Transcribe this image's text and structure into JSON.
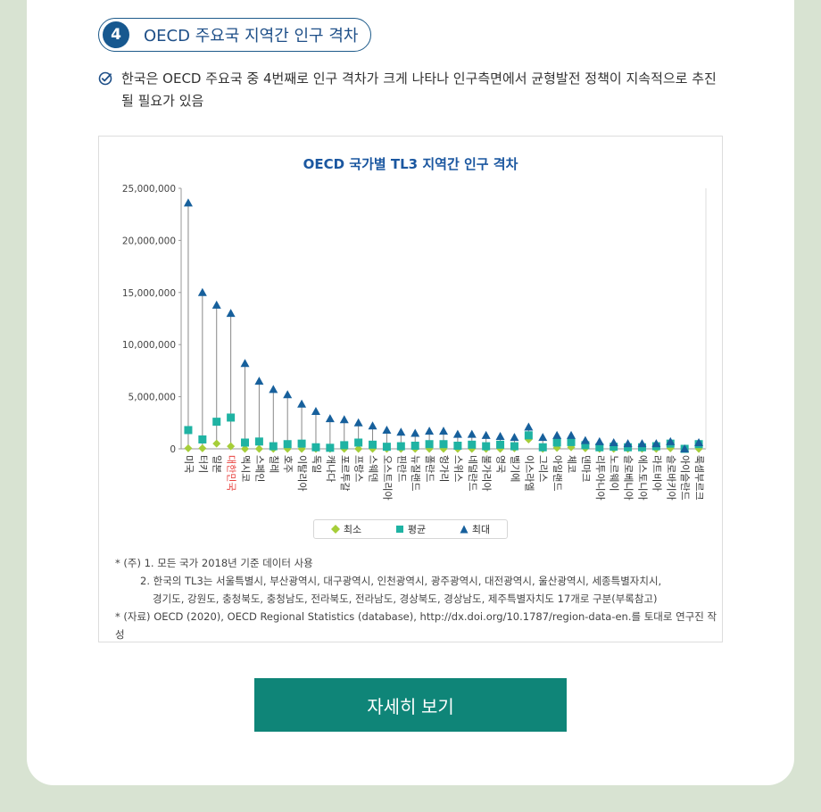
{
  "section": {
    "number": "4",
    "title": "OECD 주요국 지역간 인구 격차"
  },
  "bullet": {
    "icon": "check-circle-icon",
    "text": "한국은 OECD 주요국 중 4번째로 인구 격차가 크게 나타나 인구측면에서 균형발전 정책이 지속적으로 추진될 필요가 있음"
  },
  "colors": {
    "min": "#a6ce39",
    "avg": "#1fb3a3",
    "max": "#17609c",
    "highlight": "#e8423f",
    "button": "#0f8578"
  },
  "chart_data": {
    "type": "scatter",
    "title": "OECD 국가별 TL3 지역간 인구 격차",
    "ylim": [
      0,
      25000000
    ],
    "yticks": [
      "25,000,000",
      "20,000,000",
      "15,000,000",
      "10,000,000",
      "5,000,000",
      "0"
    ],
    "ytick_values": [
      25000000,
      20000000,
      15000000,
      10000000,
      5000000,
      0
    ],
    "highlight_category": "대한민국",
    "categories": [
      "미국",
      "터키",
      "일본",
      "대한민국",
      "멕시코",
      "스페인",
      "칠레",
      "호주",
      "이탈리아",
      "독일",
      "캐나다",
      "포르투갈",
      "프랑스",
      "스웨덴",
      "오스트리아",
      "핀란드",
      "뉴질랜드",
      "폴란드",
      "헝가리",
      "스위스",
      "네덜란드",
      "불가리아",
      "영국",
      "벨기에",
      "이스라엘",
      "그리스",
      "아일랜드",
      "체코",
      "덴마크",
      "리투아니아",
      "노르웨이",
      "슬로베니아",
      "에스토니아",
      "라트비아",
      "슬로바키아",
      "아이슬란드",
      "룩셈부르크"
    ],
    "series": [
      {
        "name": "최소",
        "values": [
          50000,
          50000,
          500000,
          250000,
          0,
          0,
          0,
          0,
          0,
          0,
          0,
          0,
          0,
          0,
          0,
          0,
          0,
          0,
          0,
          0,
          0,
          0,
          0,
          50000,
          900000,
          0,
          100000,
          150000,
          50000,
          0,
          0,
          0,
          0,
          0,
          50000,
          0,
          0
        ]
      },
      {
        "name": "평균",
        "values": [
          1800000,
          900000,
          2600000,
          3000000,
          600000,
          700000,
          250000,
          450000,
          500000,
          150000,
          100000,
          350000,
          600000,
          400000,
          200000,
          250000,
          300000,
          450000,
          450000,
          300000,
          400000,
          250000,
          400000,
          250000,
          1300000,
          150000,
          600000,
          650000,
          350000,
          150000,
          200000,
          150000,
          150000,
          250000,
          500000,
          0,
          450000
        ]
      },
      {
        "name": "최대",
        "values": [
          23600000,
          15000000,
          13800000,
          13000000,
          8200000,
          6500000,
          5700000,
          5200000,
          4300000,
          3600000,
          2900000,
          2800000,
          2500000,
          2200000,
          1800000,
          1600000,
          1500000,
          1700000,
          1700000,
          1400000,
          1400000,
          1300000,
          1200000,
          1100000,
          2100000,
          1100000,
          1300000,
          1300000,
          800000,
          700000,
          600000,
          500000,
          500000,
          500000,
          700000,
          0,
          600000
        ]
      }
    ]
  },
  "legend": {
    "min": "최소",
    "avg": "평균",
    "max": "최대"
  },
  "notes": {
    "line1": "* (주) 1. 모든 국가 2018년 기준 데이터 사용",
    "line2": "2. 한국의 TL3는 서울특별시, 부산광역시, 대구광역시, 인천광역시, 광주광역시, 대전광역시, 울산광역시, 세종특별자치시,",
    "line3": "경기도, 강원도, 충청북도, 충청남도, 전라북도, 전라남도, 경상북도, 경상남도, 제주특별자치도 17개로 구분(부록참고)",
    "line4": "* (자료) OECD (2020), OECD Regional Statistics (database), http://dx.doi.org/10.1787/region-data-en.를 토대로 연구진 작성"
  },
  "button": {
    "label": "자세히 보기"
  }
}
